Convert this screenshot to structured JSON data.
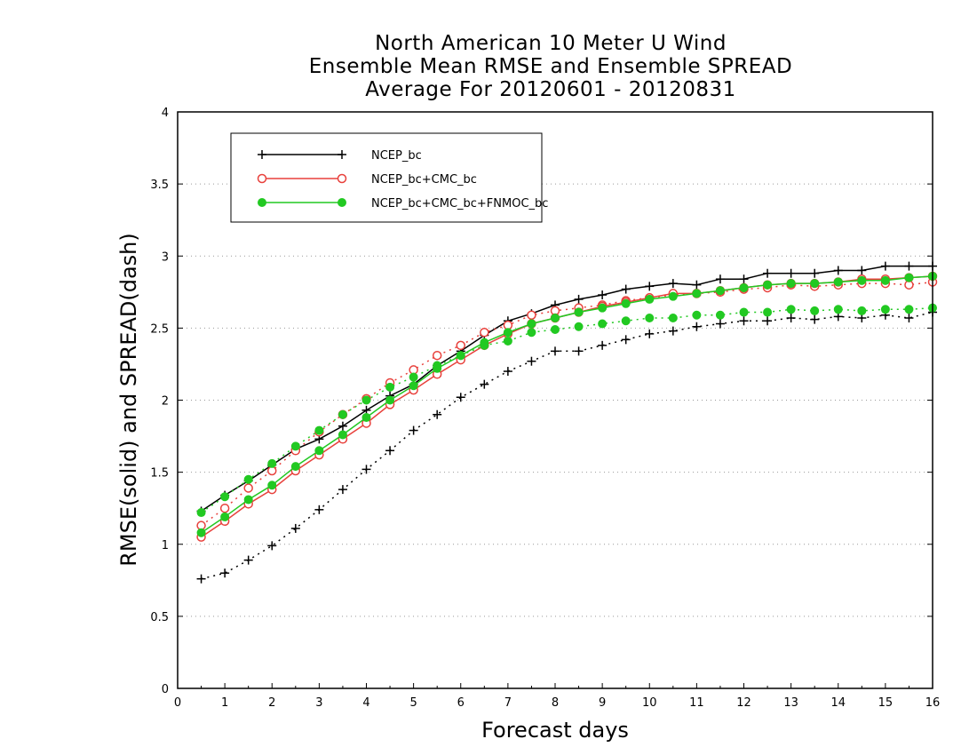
{
  "chart_data": {
    "type": "line",
    "title": [
      "North American 10 Meter U Wind",
      "Ensemble Mean RMSE and Ensemble SPREAD",
      "Average For 20120601 - 20120831"
    ],
    "xlabel": "Forecast days",
    "ylabel": "RMSE(solid) and SPREAD(dash)",
    "xlim": [
      0,
      16
    ],
    "ylim": [
      0,
      4
    ],
    "xticks": [
      "0",
      "1",
      "2",
      "3",
      "4",
      "5",
      "6",
      "7",
      "8",
      "9",
      "10",
      "11",
      "12",
      "13",
      "14",
      "15",
      "16"
    ],
    "yticks": [
      "0",
      "0.5",
      "1",
      "1.5",
      "2",
      "2.5",
      "3",
      "3.5",
      "4"
    ],
    "grid": "horizontal dotted",
    "legend_position": "top-left",
    "x": [
      0.5,
      1,
      1.5,
      2,
      2.5,
      3,
      3.5,
      4,
      4.5,
      5,
      5.5,
      6,
      6.5,
      7,
      7.5,
      8,
      8.5,
      9,
      9.5,
      10,
      10.5,
      11,
      11.5,
      12,
      12.5,
      13,
      13.5,
      14,
      14.5,
      15,
      15.5,
      16
    ],
    "series": [
      {
        "name": "NCEP_bc",
        "color": "#000000",
        "marker": "plus",
        "rmse": [
          1.23,
          1.34,
          1.44,
          1.55,
          1.66,
          1.73,
          1.82,
          1.93,
          2.03,
          2.11,
          2.24,
          2.34,
          2.45,
          2.55,
          2.6,
          2.66,
          2.7,
          2.73,
          2.77,
          2.79,
          2.81,
          2.8,
          2.84,
          2.84,
          2.88,
          2.88,
          2.88,
          2.9,
          2.9,
          2.93,
          2.93,
          2.93
        ],
        "spread": [
          0.76,
          0.8,
          0.89,
          0.99,
          1.11,
          1.24,
          1.38,
          1.52,
          1.65,
          1.79,
          1.9,
          2.02,
          2.11,
          2.2,
          2.27,
          2.34,
          2.34,
          2.38,
          2.42,
          2.46,
          2.48,
          2.51,
          2.53,
          2.55,
          2.55,
          2.57,
          2.56,
          2.58,
          2.57,
          2.59,
          2.57,
          2.61
        ]
      },
      {
        "name": "NCEP_bc+CMC_bc",
        "color": "#e8413c",
        "marker": "open-circle",
        "rmse": [
          1.05,
          1.16,
          1.28,
          1.38,
          1.51,
          1.62,
          1.73,
          1.84,
          1.97,
          2.07,
          2.18,
          2.28,
          2.38,
          2.46,
          2.53,
          2.57,
          2.61,
          2.65,
          2.68,
          2.71,
          2.74,
          2.74,
          2.76,
          2.78,
          2.8,
          2.81,
          2.81,
          2.82,
          2.84,
          2.84,
          2.85,
          2.86
        ],
        "spread": [
          1.13,
          1.25,
          1.39,
          1.51,
          1.65,
          1.78,
          1.9,
          2.01,
          2.12,
          2.21,
          2.31,
          2.38,
          2.47,
          2.52,
          2.59,
          2.62,
          2.64,
          2.66,
          2.69,
          2.71,
          2.73,
          2.74,
          2.75,
          2.77,
          2.78,
          2.8,
          2.79,
          2.8,
          2.81,
          2.81,
          2.8,
          2.82
        ]
      },
      {
        "name": "NCEP_bc+CMC_bc+FNMOC_bc",
        "color": "#22c922",
        "marker": "filled-circle",
        "rmse": [
          1.08,
          1.19,
          1.31,
          1.41,
          1.54,
          1.65,
          1.76,
          1.88,
          2.0,
          2.1,
          2.22,
          2.31,
          2.4,
          2.47,
          2.53,
          2.57,
          2.61,
          2.64,
          2.67,
          2.7,
          2.72,
          2.74,
          2.76,
          2.78,
          2.8,
          2.81,
          2.81,
          2.82,
          2.83,
          2.83,
          2.85,
          2.86
        ],
        "spread": [
          1.22,
          1.33,
          1.45,
          1.56,
          1.68,
          1.79,
          1.9,
          2.0,
          2.09,
          2.16,
          2.24,
          2.31,
          2.38,
          2.41,
          2.47,
          2.49,
          2.51,
          2.53,
          2.55,
          2.57,
          2.57,
          2.59,
          2.59,
          2.61,
          2.61,
          2.63,
          2.62,
          2.63,
          2.62,
          2.63,
          2.63,
          2.64
        ]
      }
    ]
  }
}
